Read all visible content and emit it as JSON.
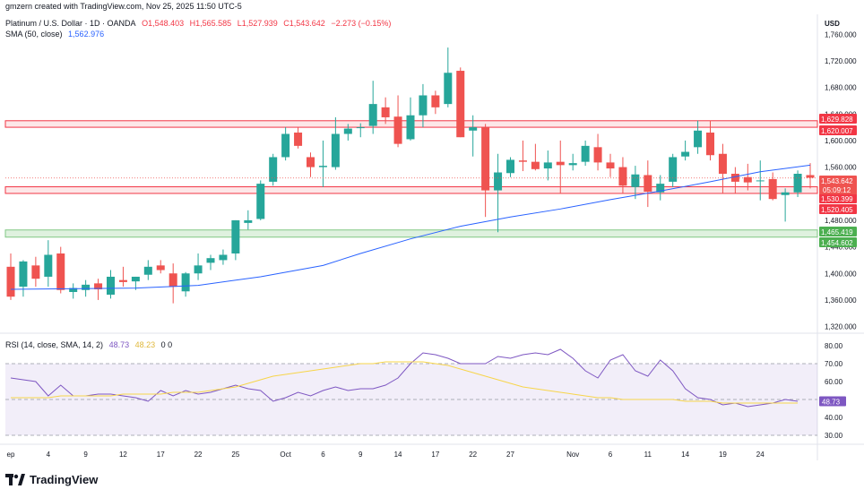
{
  "watermark": "gmzern created with TradingView.com, Nov 25, 2025 11:50 UTC-5",
  "symbol": "Platinum / U.S. Dollar · 1D · OANDA",
  "ohlc": {
    "open": "O1,548.403",
    "high": "H1,565.585",
    "low": "L1,527.939",
    "close": "C1,543.642",
    "change": "−2.273 (−0.15%)"
  },
  "sma_label": "SMA (50, close)",
  "sma_value": "1,562.976",
  "rsi_label": "RSI (14, close, SMA, 14, 2)",
  "rsi_value": "48.73",
  "rsi_sma_value": "48.23",
  "rsi_extra": "0 0",
  "currency": "USD",
  "logo_text": "TradingView",
  "colors": {
    "up": "#26a69a",
    "down": "#ef5350",
    "sma": "#2962ff",
    "rsi": "#7e57c2",
    "rsi_ma": "#f7d54a"
  },
  "chart_data": [
    {
      "type": "candlestick",
      "price_axis_ticks": [
        "1,760.000",
        "1,720.000",
        "1,680.000",
        "1,640.000",
        "1,600.000",
        "1,560.000",
        "1,520.000",
        "1,480.000",
        "1,440.000",
        "1,400.000",
        "1,360.000",
        "1,320.000"
      ],
      "ylim": [
        1310,
        1790
      ],
      "x_ticks": [
        {
          "label": "ep",
          "i": 0
        },
        {
          "label": "4",
          "i": 3
        },
        {
          "label": "9",
          "i": 6
        },
        {
          "label": "12",
          "i": 9
        },
        {
          "label": "17",
          "i": 12
        },
        {
          "label": "22",
          "i": 15
        },
        {
          "label": "25",
          "i": 18
        },
        {
          "label": "Oct",
          "i": 22
        },
        {
          "label": "6",
          "i": 25
        },
        {
          "label": "9",
          "i": 28
        },
        {
          "label": "14",
          "i": 31
        },
        {
          "label": "17",
          "i": 34
        },
        {
          "label": "22",
          "i": 37
        },
        {
          "label": "27",
          "i": 40
        },
        {
          "label": "Nov",
          "i": 45
        },
        {
          "label": "6",
          "i": 48
        },
        {
          "label": "11",
          "i": 51
        },
        {
          "label": "14",
          "i": 54
        },
        {
          "label": "19",
          "i": 57
        },
        {
          "label": "24",
          "i": 60
        }
      ],
      "candles": [
        [
          1410,
          1430,
          1360,
          1365
        ],
        [
          1380,
          1420,
          1365,
          1418
        ],
        [
          1412,
          1425,
          1380,
          1392
        ],
        [
          1395,
          1450,
          1380,
          1428
        ],
        [
          1430,
          1440,
          1370,
          1375
        ],
        [
          1372,
          1385,
          1362,
          1378
        ],
        [
          1375,
          1390,
          1365,
          1383
        ],
        [
          1385,
          1392,
          1360,
          1376
        ],
        [
          1368,
          1405,
          1362,
          1395
        ],
        [
          1390,
          1410,
          1380,
          1387
        ],
        [
          1388,
          1395,
          1375,
          1395
        ],
        [
          1398,
          1420,
          1390,
          1410
        ],
        [
          1412,
          1420,
          1400,
          1405
        ],
        [
          1400,
          1415,
          1355,
          1380
        ],
        [
          1373,
          1402,
          1365,
          1400
        ],
        [
          1400,
          1430,
          1390,
          1412
        ],
        [
          1416,
          1428,
          1405,
          1423
        ],
        [
          1420,
          1436,
          1413,
          1428
        ],
        [
          1430,
          1480,
          1420,
          1480
        ],
        [
          1476,
          1495,
          1466,
          1480
        ],
        [
          1482,
          1540,
          1480,
          1535
        ],
        [
          1538,
          1580,
          1532,
          1575
        ],
        [
          1575,
          1620,
          1570,
          1610
        ],
        [
          1612,
          1620,
          1588,
          1592
        ],
        [
          1575,
          1582,
          1545,
          1560
        ],
        [
          1560,
          1600,
          1530,
          1562
        ],
        [
          1560,
          1635,
          1556,
          1610
        ],
        [
          1610,
          1625,
          1600,
          1618
        ],
        [
          1620,
          1626,
          1605,
          1620
        ],
        [
          1622,
          1690,
          1610,
          1655
        ],
        [
          1650,
          1665,
          1625,
          1635
        ],
        [
          1636,
          1668,
          1590,
          1595
        ],
        [
          1602,
          1665,
          1600,
          1638
        ],
        [
          1638,
          1685,
          1620,
          1668
        ],
        [
          1668,
          1675,
          1640,
          1650
        ],
        [
          1655,
          1740,
          1650,
          1702
        ],
        [
          1705,
          1710,
          1605,
          1605
        ],
        [
          1615,
          1638,
          1576,
          1620
        ],
        [
          1620,
          1625,
          1485,
          1525
        ],
        [
          1525,
          1580,
          1462,
          1552
        ],
        [
          1551,
          1575,
          1545,
          1571
        ],
        [
          1570,
          1600,
          1554,
          1568
        ],
        [
          1568,
          1595,
          1555,
          1557
        ],
        [
          1558,
          1585,
          1540,
          1567
        ],
        [
          1568,
          1600,
          1520,
          1563
        ],
        [
          1563,
          1580,
          1555,
          1566
        ],
        [
          1568,
          1600,
          1562,
          1592
        ],
        [
          1590,
          1610,
          1555,
          1567
        ],
        [
          1567,
          1580,
          1545,
          1558
        ],
        [
          1560,
          1575,
          1520,
          1532
        ],
        [
          1530,
          1562,
          1512,
          1549
        ],
        [
          1548,
          1570,
          1500,
          1523
        ],
        [
          1522,
          1548,
          1510,
          1535
        ],
        [
          1538,
          1580,
          1530,
          1575
        ],
        [
          1576,
          1600,
          1570,
          1583
        ],
        [
          1590,
          1630,
          1580,
          1615
        ],
        [
          1612,
          1630,
          1570,
          1578
        ],
        [
          1580,
          1595,
          1520,
          1550
        ],
        [
          1550,
          1560,
          1520,
          1538
        ],
        [
          1545,
          1565,
          1525,
          1537
        ],
        [
          1540,
          1570,
          1510,
          1540
        ],
        [
          1542,
          1552,
          1510,
          1512
        ],
        [
          1518,
          1528,
          1478,
          1522
        ],
        [
          1522,
          1555,
          1515,
          1550
        ],
        [
          1548,
          1566,
          1528,
          1544
        ]
      ],
      "sma_50": [
        [
          0,
          1376
        ],
        [
          10,
          1378
        ],
        [
          15,
          1382
        ],
        [
          20,
          1395
        ],
        [
          25,
          1412
        ],
        [
          28,
          1430
        ],
        [
          32,
          1452
        ],
        [
          36,
          1471
        ],
        [
          40,
          1485
        ],
        [
          44,
          1497
        ],
        [
          48,
          1511
        ],
        [
          52,
          1524
        ],
        [
          56,
          1538
        ],
        [
          60,
          1553
        ],
        [
          64,
          1563
        ]
      ],
      "levels": [
        {
          "label": "1,629.828",
          "value": 1629.828,
          "color": "#f23645",
          "zone": "resistance"
        },
        {
          "label": "1,620.007",
          "value": 1620.007,
          "color": "#f23645",
          "zone": "resistance"
        },
        {
          "label": "1,530.399",
          "value": 1530.399,
          "color": "#f23645",
          "zone": "support"
        },
        {
          "label": "1,520.405",
          "value": 1520.405,
          "color": "#f23645",
          "zone": "support"
        },
        {
          "label": "1,465.419",
          "value": 1465.419,
          "color": "#4caf50",
          "zone": "demand"
        },
        {
          "label": "1,454.602",
          "value": 1454.602,
          "color": "#4caf50",
          "zone": "demand"
        }
      ],
      "last_price": {
        "label": "1,543.642",
        "countdown": "05:09:12",
        "value": 1543.642
      }
    },
    {
      "type": "line",
      "title": "RSI",
      "axis_ticks": [
        "80.00",
        "70.00",
        "60.00",
        "50.00",
        "40.00",
        "30.00"
      ],
      "ylim": [
        25,
        85
      ],
      "bands": {
        "upper": 70,
        "middle": 50,
        "lower": 30
      },
      "rsi": [
        62,
        61,
        60,
        52,
        58,
        52,
        52,
        53,
        53,
        52,
        51,
        49,
        55,
        52,
        55,
        53,
        54,
        56,
        58,
        56,
        55,
        49,
        51,
        54,
        52,
        55,
        57,
        55,
        56,
        56,
        58,
        62,
        70,
        76,
        75,
        73,
        70,
        70,
        70,
        74,
        73,
        75,
        76,
        75,
        78,
        73,
        66,
        62,
        72,
        75,
        66,
        63,
        72,
        66,
        56,
        51,
        50,
        47,
        48,
        46,
        47,
        48,
        50,
        49
      ],
      "rsi_ma": [
        51,
        51,
        51,
        51,
        52,
        52,
        52,
        52,
        52,
        53,
        53,
        53,
        53,
        54,
        54,
        54,
        55,
        56,
        57,
        59,
        61,
        63,
        64,
        65,
        66,
        67,
        68,
        69,
        70,
        70,
        71,
        71,
        71,
        71,
        70,
        69,
        67,
        65,
        63,
        61,
        59,
        57,
        56,
        55,
        54,
        53,
        52,
        51,
        51,
        50,
        50,
        50,
        50,
        50,
        49,
        49,
        49,
        48,
        48,
        48,
        48,
        48,
        48,
        48
      ]
    }
  ]
}
